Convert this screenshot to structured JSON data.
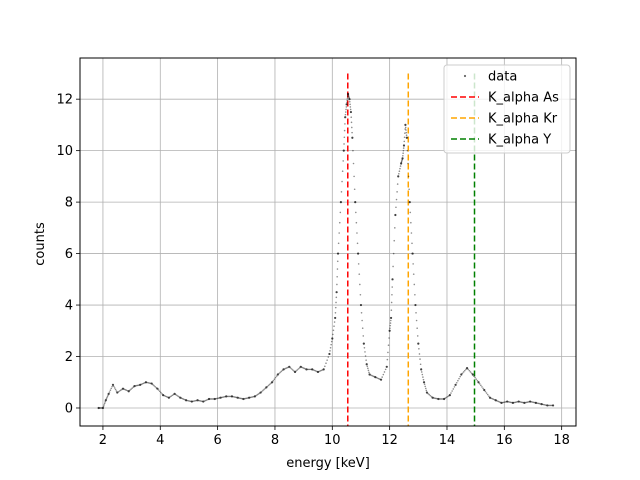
{
  "chart_data": {
    "type": "scatter",
    "xlabel": "energy [keV]",
    "ylabel": "counts",
    "xlim": [
      1.2,
      18.5
    ],
    "ylim": [
      -0.7,
      13.6
    ],
    "xticks": [
      2,
      4,
      6,
      8,
      10,
      12,
      14,
      16,
      18
    ],
    "yticks": [
      0,
      2,
      4,
      6,
      8,
      10,
      12
    ],
    "grid": true,
    "legend_position": "top-right",
    "series": [
      {
        "name": "data",
        "kind": "scatter",
        "color": "#000000",
        "points": [
          [
            1.85,
            0.0
          ],
          [
            2.0,
            0.0
          ],
          [
            2.1,
            0.3
          ],
          [
            2.2,
            0.55
          ],
          [
            2.35,
            0.9
          ],
          [
            2.5,
            0.6
          ],
          [
            2.7,
            0.75
          ],
          [
            2.9,
            0.65
          ],
          [
            3.1,
            0.85
          ],
          [
            3.3,
            0.9
          ],
          [
            3.5,
            1.0
          ],
          [
            3.7,
            0.95
          ],
          [
            3.9,
            0.75
          ],
          [
            4.1,
            0.5
          ],
          [
            4.3,
            0.4
          ],
          [
            4.5,
            0.55
          ],
          [
            4.7,
            0.4
          ],
          [
            4.9,
            0.3
          ],
          [
            5.1,
            0.25
          ],
          [
            5.3,
            0.3
          ],
          [
            5.5,
            0.25
          ],
          [
            5.7,
            0.35
          ],
          [
            5.9,
            0.35
          ],
          [
            6.1,
            0.4
          ],
          [
            6.3,
            0.45
          ],
          [
            6.5,
            0.45
          ],
          [
            6.7,
            0.4
          ],
          [
            6.9,
            0.35
          ],
          [
            7.1,
            0.4
          ],
          [
            7.3,
            0.45
          ],
          [
            7.5,
            0.6
          ],
          [
            7.7,
            0.8
          ],
          [
            7.9,
            1.0
          ],
          [
            8.1,
            1.3
          ],
          [
            8.3,
            1.5
          ],
          [
            8.5,
            1.6
          ],
          [
            8.7,
            1.4
          ],
          [
            8.9,
            1.6
          ],
          [
            9.1,
            1.5
          ],
          [
            9.3,
            1.5
          ],
          [
            9.5,
            1.4
          ],
          [
            9.7,
            1.5
          ],
          [
            9.9,
            2.1
          ],
          [
            10.0,
            2.7
          ],
          [
            10.1,
            3.5
          ],
          [
            10.15,
            4.5
          ],
          [
            10.2,
            6.0
          ],
          [
            10.3,
            8.0
          ],
          [
            10.4,
            10.0
          ],
          [
            10.45,
            11.3
          ],
          [
            10.5,
            11.8
          ],
          [
            10.55,
            12.2
          ],
          [
            10.6,
            12.0
          ],
          [
            10.65,
            11.5
          ],
          [
            10.7,
            10.5
          ],
          [
            10.8,
            8.0
          ],
          [
            10.9,
            6.0
          ],
          [
            11.0,
            4.0
          ],
          [
            11.1,
            2.5
          ],
          [
            11.2,
            1.7
          ],
          [
            11.3,
            1.3
          ],
          [
            11.5,
            1.2
          ],
          [
            11.7,
            1.1
          ],
          [
            11.9,
            1.6
          ],
          [
            12.0,
            3.0
          ],
          [
            12.05,
            3.5
          ],
          [
            12.1,
            5.0
          ],
          [
            12.2,
            7.5
          ],
          [
            12.3,
            9.0
          ],
          [
            12.4,
            9.5
          ],
          [
            12.45,
            9.7
          ],
          [
            12.5,
            10.2
          ],
          [
            12.55,
            11.0
          ],
          [
            12.6,
            10.5
          ],
          [
            12.7,
            8.0
          ],
          [
            12.8,
            6.0
          ],
          [
            12.9,
            4.0
          ],
          [
            13.0,
            2.5
          ],
          [
            13.1,
            1.5
          ],
          [
            13.2,
            1.0
          ],
          [
            13.3,
            0.6
          ],
          [
            13.5,
            0.4
          ],
          [
            13.7,
            0.35
          ],
          [
            13.9,
            0.35
          ],
          [
            14.1,
            0.5
          ],
          [
            14.3,
            0.9
          ],
          [
            14.5,
            1.3
          ],
          [
            14.7,
            1.55
          ],
          [
            14.9,
            1.3
          ],
          [
            15.1,
            1.0
          ],
          [
            15.3,
            0.7
          ],
          [
            15.5,
            0.4
          ],
          [
            15.7,
            0.3
          ],
          [
            15.9,
            0.2
          ],
          [
            16.1,
            0.25
          ],
          [
            16.3,
            0.2
          ],
          [
            16.5,
            0.25
          ],
          [
            16.7,
            0.2
          ],
          [
            16.9,
            0.25
          ],
          [
            17.1,
            0.2
          ],
          [
            17.3,
            0.15
          ],
          [
            17.5,
            0.1
          ],
          [
            17.7,
            0.1
          ]
        ]
      },
      {
        "name": "K_alpha As",
        "kind": "vline",
        "x": 10.54,
        "y_range": [
          -0.7,
          13.0
        ],
        "color": "#ff0000",
        "dash": "dashed"
      },
      {
        "name": "K_alpha Kr",
        "kind": "vline",
        "x": 12.65,
        "y_range": [
          -0.7,
          13.0
        ],
        "color": "#ffa500",
        "dash": "dashed"
      },
      {
        "name": "K_alpha Y",
        "kind": "vline",
        "x": 14.96,
        "y_range": [
          -0.7,
          13.0
        ],
        "color": "#008000",
        "dash": "dashed"
      }
    ]
  }
}
